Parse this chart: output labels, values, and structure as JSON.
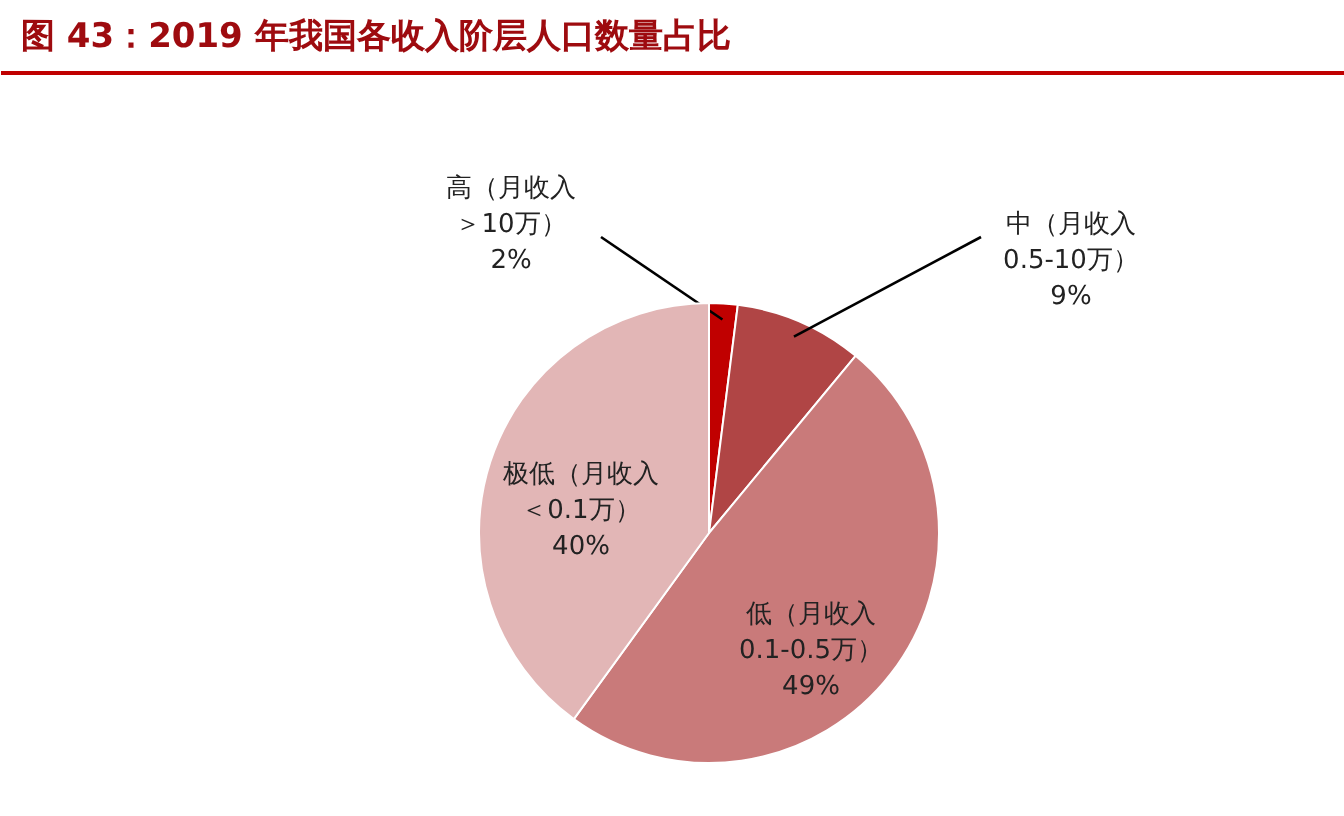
{
  "chart_data": {
    "type": "pie",
    "title": "图 43：2019 年我国各收入阶层人口数量占比",
    "categories": [
      "高（月收入＞10万）",
      "中（月收入0.5-10万）",
      "低（月收入0.1-0.5万）",
      "极低（月收入＜0.1万）"
    ],
    "values": [
      2,
      9,
      49,
      40
    ],
    "value_labels": [
      "2%",
      "9%",
      "49%",
      "40%"
    ],
    "colors": [
      "#c00000",
      "#b04545",
      "#c97a7a",
      "#e2b6b6"
    ]
  }
}
